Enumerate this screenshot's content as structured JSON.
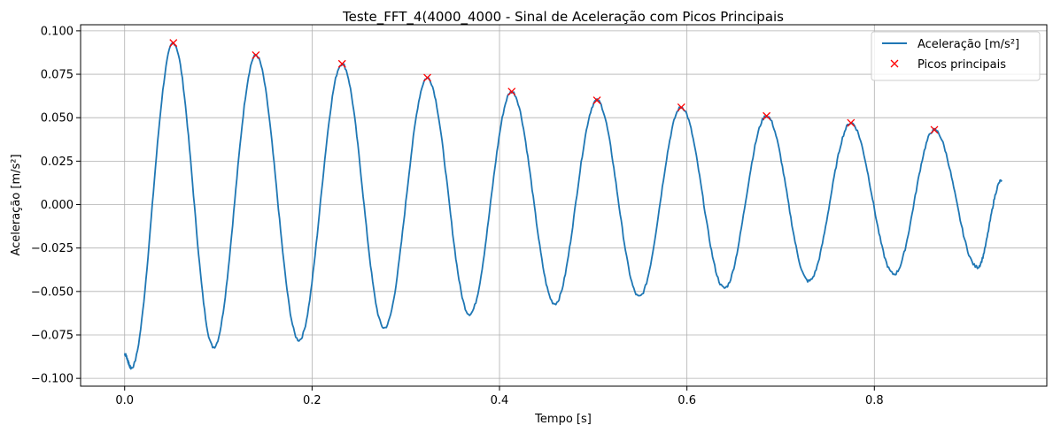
{
  "chart_data": {
    "type": "line",
    "title": "Teste_FFT_4(4000_4000 - Sinal de Aceleração com Picos Principais",
    "xlabel": "Tempo [s]",
    "ylabel": "Aceleração [m/s²]",
    "xlim": [
      -0.047,
      0.984
    ],
    "ylim": [
      -0.1045,
      0.1035
    ],
    "xticks": [
      0.0,
      0.2,
      0.4,
      0.6,
      0.8
    ],
    "xtick_labels": [
      "0.0",
      "0.2",
      "0.4",
      "0.6",
      "0.8"
    ],
    "yticks": [
      -0.1,
      -0.075,
      -0.05,
      -0.025,
      0.0,
      0.025,
      0.05,
      0.075,
      0.1
    ],
    "ytick_labels": [
      "−0.100",
      "−0.075",
      "−0.050",
      "−0.025",
      "0.000",
      "0.025",
      "0.050",
      "0.075",
      "0.100"
    ],
    "grid": true,
    "legend_position": "top-right",
    "colors": {
      "signal": "#1f77b4",
      "peaks": "#ff0000",
      "grid": "#b0b0b0"
    },
    "series": [
      {
        "name": "Aceleração [m/s²]",
        "style": "line",
        "x": [
          0.0,
          0.007,
          0.052,
          0.095,
          0.14,
          0.186,
          0.232,
          0.277,
          0.323,
          0.368,
          0.413,
          0.459,
          0.504,
          0.549,
          0.594,
          0.64,
          0.685,
          0.73,
          0.775,
          0.821,
          0.864,
          0.91,
          0.936
        ],
        "y": [
          -0.086,
          -0.094,
          0.093,
          -0.082,
          0.086,
          -0.078,
          0.081,
          -0.071,
          0.073,
          -0.063,
          0.065,
          -0.057,
          0.06,
          -0.053,
          0.056,
          -0.048,
          0.051,
          -0.044,
          0.047,
          -0.04,
          0.043,
          -0.036,
          0.014
        ]
      },
      {
        "name": "Picos principais",
        "style": "marker-x",
        "x": [
          0.052,
          0.14,
          0.232,
          0.323,
          0.413,
          0.504,
          0.594,
          0.685,
          0.775,
          0.864
        ],
        "y": [
          0.093,
          0.086,
          0.081,
          0.073,
          0.065,
          0.06,
          0.056,
          0.051,
          0.047,
          0.043
        ]
      }
    ]
  }
}
